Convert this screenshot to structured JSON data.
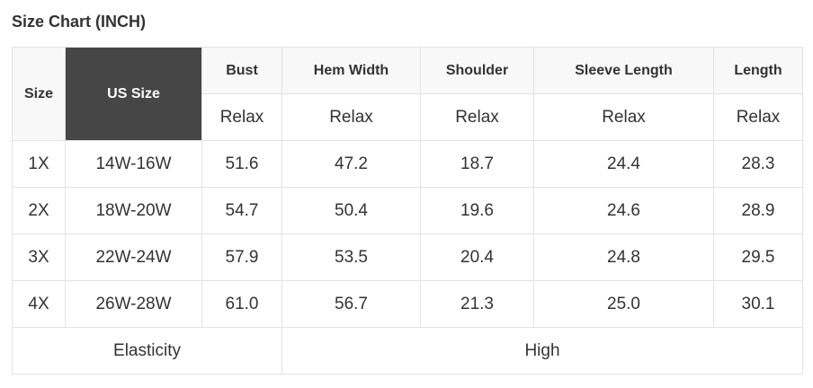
{
  "title": "Size Chart (INCH)",
  "headers": [
    "Size",
    "US Size",
    "Bust",
    "Hem Width",
    "Shoulder",
    "Sleeve Length",
    "Length"
  ],
  "subheaders": [
    "Relax",
    "Relax",
    "Relax",
    "Relax",
    "Relax"
  ],
  "rows": [
    [
      "1X",
      "14W-16W",
      "51.6",
      "47.2",
      "18.7",
      "24.4",
      "28.3"
    ],
    [
      "2X",
      "18W-20W",
      "54.7",
      "50.4",
      "19.6",
      "24.6",
      "28.9"
    ],
    [
      "3X",
      "22W-24W",
      "57.9",
      "53.5",
      "20.4",
      "24.8",
      "29.5"
    ],
    [
      "4X",
      "26W-28W",
      "61.0",
      "56.7",
      "21.3",
      "25.0",
      "30.1"
    ]
  ],
  "elasticity": {
    "label": "Elasticity",
    "value": "High"
  },
  "colors": {
    "header_bg": "#f8f8f8",
    "highlight_bg": "#464646",
    "border": "#e2e2e2"
  }
}
